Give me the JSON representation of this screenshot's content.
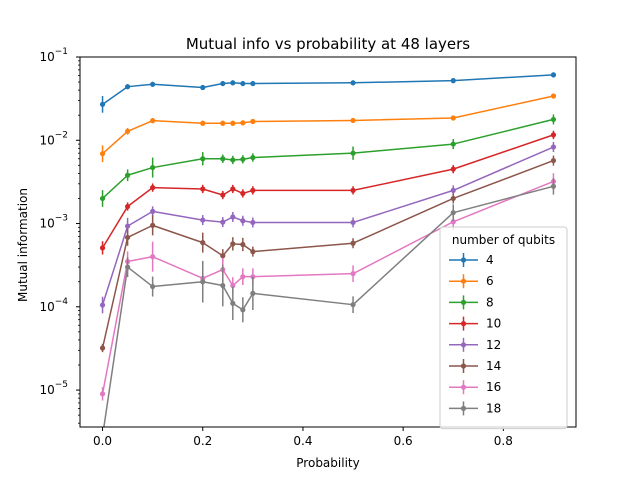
{
  "chart_data": {
    "type": "line",
    "title": "Mutual info vs probability at 48 layers",
    "xlabel": "Probability",
    "ylabel": "Mutual information",
    "xlim": [
      -0.045,
      0.945
    ],
    "ylim": [
      3.6e-06,
      0.1
    ],
    "yscale": "log",
    "grid": false,
    "legend_title": "number of qubits",
    "legend_position": "center-right",
    "x_ticks": [
      {
        "value": 0.0,
        "label": "0.0"
      },
      {
        "value": 0.2,
        "label": "0.2"
      },
      {
        "value": 0.4,
        "label": "0.4"
      },
      {
        "value": 0.6,
        "label": "0.6"
      },
      {
        "value": 0.8,
        "label": "0.8"
      }
    ],
    "y_ticks": [
      {
        "value": 1e-05,
        "base": "10",
        "exp": "−5"
      },
      {
        "value": 0.0001,
        "base": "10",
        "exp": "−4"
      },
      {
        "value": 0.001,
        "base": "10",
        "exp": "−3"
      },
      {
        "value": 0.01,
        "base": "10",
        "exp": "−2"
      },
      {
        "value": 0.1,
        "base": "10",
        "exp": "−1"
      }
    ],
    "x": [
      0.0,
      0.05,
      0.1,
      0.2,
      0.24,
      0.26,
      0.28,
      0.3,
      0.5,
      0.7,
      0.9
    ],
    "series": [
      {
        "name": "4",
        "color": "#1f77b4",
        "values": [
          0.027,
          0.044,
          0.047,
          0.043,
          0.048,
          0.049,
          0.048,
          0.048,
          0.049,
          0.052,
          0.061
        ],
        "errors": [
          0.1,
          0.03,
          0.03,
          0.03,
          0.03,
          0.03,
          0.03,
          0.03,
          0.03,
          0.03,
          0.03
        ]
      },
      {
        "name": "6",
        "color": "#ff7f0e",
        "values": [
          0.0069,
          0.0128,
          0.0172,
          0.016,
          0.016,
          0.016,
          0.0162,
          0.0168,
          0.0173,
          0.0185,
          0.034
        ],
        "errors": [
          0.1,
          0.04,
          0.03,
          0.03,
          0.03,
          0.03,
          0.03,
          0.03,
          0.03,
          0.03,
          0.03
        ]
      },
      {
        "name": "8",
        "color": "#2ca02c",
        "values": [
          0.002,
          0.0038,
          0.0047,
          0.006,
          0.006,
          0.0058,
          0.0059,
          0.0062,
          0.007,
          0.009,
          0.0178
        ],
        "errors": [
          0.1,
          0.07,
          0.12,
          0.08,
          0.05,
          0.05,
          0.05,
          0.05,
          0.08,
          0.06,
          0.06
        ]
      },
      {
        "name": "10",
        "color": "#d62728",
        "values": [
          0.00051,
          0.0016,
          0.0027,
          0.0026,
          0.0022,
          0.0026,
          0.0023,
          0.0025,
          0.0025,
          0.0045,
          0.0116
        ],
        "errors": [
          0.08,
          0.05,
          0.05,
          0.05,
          0.05,
          0.05,
          0.05,
          0.05,
          0.05,
          0.05,
          0.05
        ]
      },
      {
        "name": "12",
        "color": "#9467bd",
        "values": [
          0.000105,
          0.00093,
          0.0014,
          0.0011,
          0.00104,
          0.0012,
          0.00108,
          0.00103,
          0.00103,
          0.0025,
          0.0083
        ],
        "errors": [
          0.1,
          0.1,
          0.06,
          0.06,
          0.06,
          0.06,
          0.06,
          0.06,
          0.06,
          0.06,
          0.06
        ]
      },
      {
        "name": "14",
        "color": "#8c564b",
        "values": [
          3.2e-05,
          0.00068,
          0.00095,
          0.00059,
          0.00041,
          0.00057,
          0.00056,
          0.00046,
          0.00058,
          0.002,
          0.0057
        ],
        "errors": [
          0.05,
          0.1,
          0.12,
          0.12,
          0.08,
          0.08,
          0.08,
          0.06,
          0.06,
          0.06,
          0.06
        ]
      },
      {
        "name": "16",
        "color": "#e377c2",
        "values": [
          9e-06,
          0.00035,
          0.0004,
          0.00022,
          0.00028,
          0.00018,
          0.00023,
          0.00023,
          0.00025,
          0.00105,
          0.0032
        ],
        "errors": [
          0.08,
          0.12,
          0.18,
          0.14,
          0.14,
          0.1,
          0.1,
          0.1,
          0.1,
          0.1,
          0.1
        ]
      },
      {
        "name": "18",
        "color": "#7f7f7f",
        "values": [
          2.8e-06,
          0.0003,
          0.000175,
          0.0002,
          0.00018,
          0.00011,
          9.2e-05,
          0.000145,
          0.000106,
          0.00135,
          0.0028
        ],
        "errors": [
          0.05,
          0.12,
          0.12,
          0.25,
          0.25,
          0.2,
          0.15,
          0.2,
          0.1,
          0.1,
          0.1
        ]
      }
    ]
  }
}
